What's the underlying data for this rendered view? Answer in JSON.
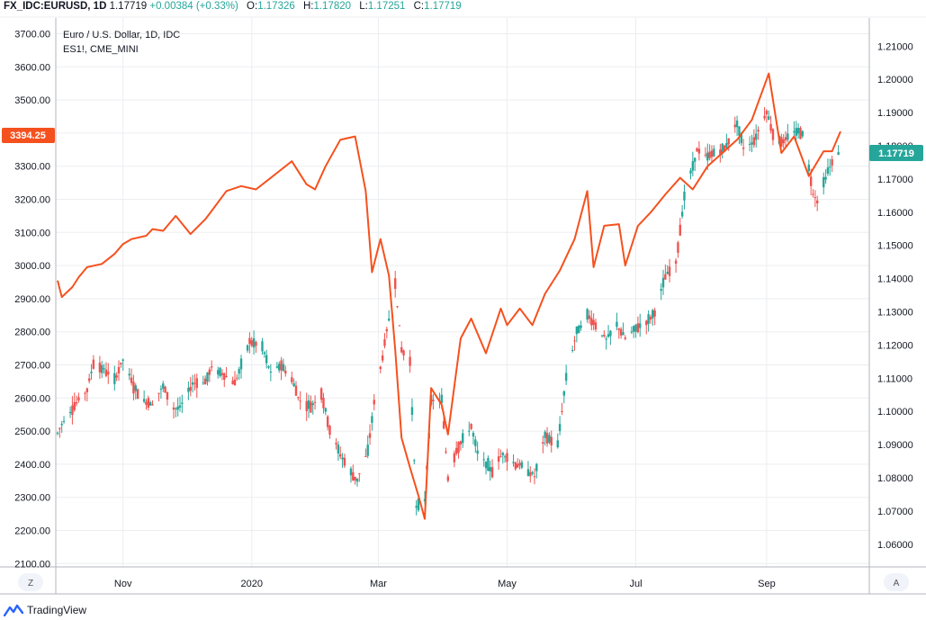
{
  "header": {
    "symbol": "FX_IDC:EURUSD, 1D",
    "last": "1.17719",
    "change": "+0.00384 (+0.33%)",
    "open_label": "O:",
    "open": "1.17326",
    "high_label": "H:",
    "high": "1.17820",
    "low_label": "L:",
    "low": "1.17251",
    "close_label": "C:",
    "close": "1.17719"
  },
  "legend": {
    "main": "Euro / U.S. Dollar, 1D, IDC",
    "overlay": "ES1!, CME_MINI"
  },
  "buttons": {
    "left": "Z",
    "right": "A"
  },
  "footer": {
    "brand": "TradingView"
  },
  "colors": {
    "up": "#26a69a",
    "down": "#ef5350",
    "overlay_line": "#f5511e",
    "grid": "#ecedf0",
    "axis": "#b2b5be"
  },
  "chart_data": {
    "type": "line",
    "title": "Euro / U.S. Dollar, 1D, IDC",
    "x_ticks": [
      "Nov",
      "2020",
      "Mar",
      "May",
      "Jul",
      "Sep"
    ],
    "left_axis": {
      "series": "ES1!, CME_MINI",
      "ylim": [
        2100,
        3700
      ],
      "ticks": [
        "3700.00",
        "3600.00",
        "3500.00",
        "3400.00",
        "3300.00",
        "3200.00",
        "3100.00",
        "3000.00",
        "2900.00",
        "2800.00",
        "2700.00",
        "2600.00",
        "2500.00",
        "2400.00",
        "2300.00",
        "2200.00",
        "2100.00"
      ],
      "last_value": "3394.25"
    },
    "right_axis": {
      "series": "EURUSD",
      "ylim": [
        1.055,
        1.212
      ],
      "ticks": [
        "1.21000",
        "1.20000",
        "1.19000",
        "1.18000",
        "1.17000",
        "1.16000",
        "1.15000",
        "1.14000",
        "1.13000",
        "1.12000",
        "1.11000",
        "1.10000",
        "1.09000",
        "1.08000",
        "1.07000",
        "1.06000"
      ],
      "last_value": "1.17719"
    },
    "series": [
      {
        "name": "ES1!, CME_MINI",
        "axis": "left",
        "points": [
          [
            "2019-10-01",
            2955
          ],
          [
            "2019-10-03",
            2905
          ],
          [
            "2019-10-08",
            2935
          ],
          [
            "2019-10-11",
            2965
          ],
          [
            "2019-10-15",
            2995
          ],
          [
            "2019-10-22",
            3005
          ],
          [
            "2019-10-28",
            3035
          ],
          [
            "2019-11-01",
            3065
          ],
          [
            "2019-11-05",
            3080
          ],
          [
            "2019-11-12",
            3090
          ],
          [
            "2019-11-15",
            3110
          ],
          [
            "2019-11-20",
            3105
          ],
          [
            "2019-11-26",
            3150
          ],
          [
            "2019-12-03",
            3095
          ],
          [
            "2019-12-10",
            3140
          ],
          [
            "2019-12-13",
            3165
          ],
          [
            "2019-12-20",
            3225
          ],
          [
            "2019-12-27",
            3240
          ],
          [
            "2020-01-03",
            3230
          ],
          [
            "2020-01-08",
            3255
          ],
          [
            "2020-01-15",
            3290
          ],
          [
            "2020-01-20",
            3315
          ],
          [
            "2020-01-27",
            3245
          ],
          [
            "2020-01-31",
            3230
          ],
          [
            "2020-02-05",
            3300
          ],
          [
            "2020-02-12",
            3380
          ],
          [
            "2020-02-19",
            3390
          ],
          [
            "2020-02-24",
            3225
          ],
          [
            "2020-02-27",
            2980
          ],
          [
            "2020-03-02",
            3080
          ],
          [
            "2020-03-06",
            2970
          ],
          [
            "2020-03-09",
            2745
          ],
          [
            "2020-03-12",
            2480
          ],
          [
            "2020-03-16",
            2390
          ],
          [
            "2020-03-20",
            2305
          ],
          [
            "2020-03-23",
            2235
          ],
          [
            "2020-03-26",
            2630
          ],
          [
            "2020-03-31",
            2580
          ],
          [
            "2020-04-03",
            2490
          ],
          [
            "2020-04-09",
            2780
          ],
          [
            "2020-04-14",
            2840
          ],
          [
            "2020-04-21",
            2735
          ],
          [
            "2020-04-28",
            2870
          ],
          [
            "2020-05-01",
            2820
          ],
          [
            "2020-05-07",
            2870
          ],
          [
            "2020-05-13",
            2820
          ],
          [
            "2020-05-19",
            2915
          ],
          [
            "2020-05-26",
            2985
          ],
          [
            "2020-06-02",
            3080
          ],
          [
            "2020-06-08",
            3225
          ],
          [
            "2020-06-11",
            2995
          ],
          [
            "2020-06-16",
            3120
          ],
          [
            "2020-06-23",
            3125
          ],
          [
            "2020-06-26",
            3000
          ],
          [
            "2020-07-02",
            3120
          ],
          [
            "2020-07-08",
            3160
          ],
          [
            "2020-07-15",
            3215
          ],
          [
            "2020-07-22",
            3265
          ],
          [
            "2020-07-28",
            3230
          ],
          [
            "2020-08-04",
            3300
          ],
          [
            "2020-08-11",
            3340
          ],
          [
            "2020-08-18",
            3380
          ],
          [
            "2020-08-25",
            3440
          ],
          [
            "2020-09-02",
            3580
          ],
          [
            "2020-09-08",
            3340
          ],
          [
            "2020-09-14",
            3390
          ],
          [
            "2020-09-21",
            3270
          ],
          [
            "2020-09-28",
            3345
          ],
          [
            "2020-10-02",
            3345
          ],
          [
            "2020-10-06",
            3405
          ]
        ]
      },
      {
        "name": "EURUSD",
        "axis": "right",
        "style": "candles",
        "closes": [
          [
            "2019-10-01",
            1.0935
          ],
          [
            "2019-10-04",
            1.0975
          ],
          [
            "2019-10-10",
            1.1025
          ],
          [
            "2019-10-15",
            1.1065
          ],
          [
            "2019-10-18",
            1.1145
          ],
          [
            "2019-10-23",
            1.1125
          ],
          [
            "2019-10-28",
            1.1095
          ],
          [
            "2019-11-01",
            1.1155
          ],
          [
            "2019-11-06",
            1.1075
          ],
          [
            "2019-11-11",
            1.103
          ],
          [
            "2019-11-15",
            1.1025
          ],
          [
            "2019-11-20",
            1.1075
          ],
          [
            "2019-11-25",
            1.101
          ],
          [
            "2019-11-28",
            1.101
          ],
          [
            "2019-12-04",
            1.1085
          ],
          [
            "2019-12-10",
            1.109
          ],
          [
            "2019-12-13",
            1.113
          ],
          [
            "2019-12-18",
            1.1115
          ],
          [
            "2019-12-24",
            1.1085
          ],
          [
            "2019-12-31",
            1.121
          ],
          [
            "2020-01-06",
            1.1195
          ],
          [
            "2020-01-10",
            1.1115
          ],
          [
            "2020-01-15",
            1.114
          ],
          [
            "2020-01-20",
            1.1095
          ],
          [
            "2020-01-24",
            1.103
          ],
          [
            "2020-01-29",
            1.1015
          ],
          [
            "2020-02-03",
            1.1055
          ],
          [
            "2020-02-07",
            1.0945
          ],
          [
            "2020-02-12",
            1.087
          ],
          [
            "2020-02-18",
            1.0805
          ],
          [
            "2020-02-20",
            1.0795
          ],
          [
            "2020-02-25",
            1.088
          ],
          [
            "2020-02-28",
            1.1025
          ],
          [
            "2020-03-03",
            1.1165
          ],
          [
            "2020-03-09",
            1.139
          ],
          [
            "2020-03-12",
            1.1185
          ],
          [
            "2020-03-16",
            1.115
          ],
          [
            "2020-03-19",
            1.071
          ],
          [
            "2020-03-23",
            1.0735
          ],
          [
            "2020-03-26",
            1.103
          ],
          [
            "2020-03-31",
            1.1035
          ],
          [
            "2020-04-03",
            1.08
          ],
          [
            "2020-04-07",
            1.0885
          ],
          [
            "2020-04-14",
            1.0955
          ],
          [
            "2020-04-17",
            1.0875
          ],
          [
            "2020-04-24",
            1.082
          ],
          [
            "2020-04-29",
            1.0875
          ],
          [
            "2020-05-05",
            1.084
          ],
          [
            "2020-05-08",
            1.0835
          ],
          [
            "2020-05-14",
            1.0805
          ],
          [
            "2020-05-19",
            1.0925
          ],
          [
            "2020-05-25",
            1.09
          ],
          [
            "2020-05-29",
            1.1105
          ],
          [
            "2020-06-03",
            1.124
          ],
          [
            "2020-06-08",
            1.129
          ],
          [
            "2020-06-12",
            1.126
          ],
          [
            "2020-06-17",
            1.1215
          ],
          [
            "2020-06-22",
            1.126
          ],
          [
            "2020-06-26",
            1.122
          ],
          [
            "2020-07-01",
            1.125
          ],
          [
            "2020-07-07",
            1.1275
          ],
          [
            "2020-07-10",
            1.13
          ],
          [
            "2020-07-15",
            1.1405
          ],
          [
            "2020-07-20",
            1.1445
          ],
          [
            "2020-07-24",
            1.165
          ],
          [
            "2020-07-30",
            1.1785
          ],
          [
            "2020-08-04",
            1.1765
          ],
          [
            "2020-08-07",
            1.178
          ],
          [
            "2020-08-12",
            1.179
          ],
          [
            "2020-08-18",
            1.187
          ],
          [
            "2020-08-21",
            1.1795
          ],
          [
            "2020-08-26",
            1.1815
          ],
          [
            "2020-09-01",
            1.1905
          ],
          [
            "2020-09-04",
            1.1835
          ],
          [
            "2020-09-09",
            1.181
          ],
          [
            "2020-09-14",
            1.1845
          ],
          [
            "2020-09-18",
            1.184
          ],
          [
            "2020-09-23",
            1.166
          ],
          [
            "2020-09-25",
            1.1635
          ],
          [
            "2020-09-30",
            1.1725
          ],
          [
            "2020-10-05",
            1.178
          ],
          [
            "2020-10-06",
            1.1772
          ]
        ]
      }
    ],
    "grid": true
  }
}
